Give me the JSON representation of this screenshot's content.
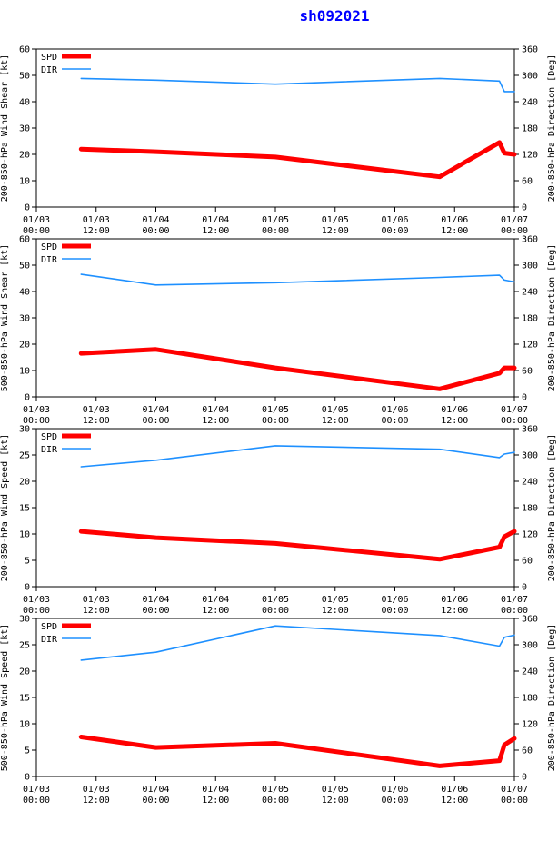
{
  "title": "sh092021",
  "colors": {
    "spd": "#ff0000",
    "dir": "#1e90ff",
    "title": "#0000ff"
  },
  "legend": {
    "spd": "SPD",
    "dir": "DIR"
  },
  "x_ticks": [
    {
      "date": "01/03",
      "time": "00:00",
      "hour": 0
    },
    {
      "date": "01/03",
      "time": "12:00",
      "hour": 12
    },
    {
      "date": "01/04",
      "time": "00:00",
      "hour": 24
    },
    {
      "date": "01/04",
      "time": "12:00",
      "hour": 36
    },
    {
      "date": "01/05",
      "time": "00:00",
      "hour": 48
    },
    {
      "date": "01/05",
      "time": "12:00",
      "hour": 60
    },
    {
      "date": "01/06",
      "time": "00:00",
      "hour": 72
    },
    {
      "date": "01/06",
      "time": "12:00",
      "hour": 84
    },
    {
      "date": "01/07",
      "time": "00:00",
      "hour": 96
    }
  ],
  "chart_data": [
    {
      "type": "line",
      "ylabel": "200-850-hPa Wind Shear [kt]",
      "y2label": "200-850-hPa Direction [Deg]",
      "ylim": [
        0,
        60
      ],
      "yticks": [
        0,
        10,
        20,
        30,
        40,
        50,
        60
      ],
      "y2lim": [
        0,
        360
      ],
      "y2ticks": [
        0,
        60,
        120,
        180,
        240,
        300,
        360
      ],
      "series": [
        {
          "name": "SPD",
          "axis": "left",
          "x": [
            "01/03 09:00",
            "01/04 00:00",
            "01/05 00:00",
            "01/06 09:00",
            "01/06 21:00",
            "01/06 22:00",
            "01/07 00:00"
          ],
          "values": [
            22,
            21,
            19,
            11.5,
            24.5,
            20.5,
            20
          ]
        },
        {
          "name": "DIR",
          "axis": "right",
          "x": [
            "01/03 09:00",
            "01/04 00:00",
            "01/05 00:00",
            "01/06 09:00",
            "01/06 21:00",
            "01/06 22:00",
            "01/07 00:00"
          ],
          "values": [
            293,
            289,
            280,
            293,
            287,
            263,
            263
          ]
        }
      ]
    },
    {
      "type": "line",
      "ylabel": "500-850-hPa Wind Shear [kt]",
      "y2label": "200-850-hPa Direction [Deg]",
      "ylim": [
        0,
        60
      ],
      "yticks": [
        0,
        10,
        20,
        30,
        40,
        50,
        60
      ],
      "y2lim": [
        0,
        360
      ],
      "y2ticks": [
        0,
        60,
        120,
        180,
        240,
        300,
        360
      ],
      "series": [
        {
          "name": "SPD",
          "axis": "left",
          "x": [
            "01/03 09:00",
            "01/04 00:00",
            "01/05 00:00",
            "01/06 09:00",
            "01/06 21:00",
            "01/06 22:00",
            "01/07 00:00"
          ],
          "values": [
            16.5,
            18,
            11,
            3,
            9,
            11,
            11
          ]
        },
        {
          "name": "DIR",
          "axis": "right",
          "x": [
            "01/03 09:00",
            "01/04 00:00",
            "01/05 00:00",
            "01/06 09:00",
            "01/06 21:00",
            "01/06 22:00",
            "01/07 00:00"
          ],
          "values": [
            279,
            255,
            260,
            272,
            277,
            266,
            262
          ]
        }
      ]
    },
    {
      "type": "line",
      "ylabel": "200-850-hPa Wind Speed [kt]",
      "y2label": "200-850-hPa Direction [Deg]",
      "ylim": [
        0,
        30
      ],
      "yticks": [
        0,
        5,
        10,
        15,
        20,
        25,
        30
      ],
      "y2lim": [
        0,
        360
      ],
      "y2ticks": [
        0,
        60,
        120,
        180,
        240,
        300,
        360
      ],
      "series": [
        {
          "name": "SPD",
          "axis": "left",
          "x": [
            "01/03 09:00",
            "01/04 00:00",
            "01/05 00:00",
            "01/06 09:00",
            "01/06 21:00",
            "01/06 22:00",
            "01/07 00:00"
          ],
          "values": [
            10.5,
            9.3,
            8.2,
            5.2,
            7.5,
            9.5,
            10.5
          ]
        },
        {
          "name": "DIR",
          "axis": "right",
          "x": [
            "01/03 09:00",
            "01/04 00:00",
            "01/05 00:00",
            "01/06 09:00",
            "01/06 21:00",
            "01/06 22:00",
            "01/07 00:00"
          ],
          "values": [
            273,
            288,
            321,
            313,
            294,
            302,
            306
          ]
        }
      ]
    },
    {
      "type": "line",
      "ylabel": "500-850-hPa Wind Speed [kt]",
      "y2label": "200-850-hPa Direction [Deg]",
      "ylim": [
        0,
        30
      ],
      "yticks": [
        0,
        5,
        10,
        15,
        20,
        25,
        30
      ],
      "y2lim": [
        0,
        360
      ],
      "y2ticks": [
        0,
        60,
        120,
        180,
        240,
        300,
        360
      ],
      "series": [
        {
          "name": "SPD",
          "axis": "left",
          "x": [
            "01/03 09:00",
            "01/04 00:00",
            "01/05 00:00",
            "01/06 09:00",
            "01/06 21:00",
            "01/06 22:00",
            "01/07 00:00"
          ],
          "values": [
            7.5,
            5.5,
            6.3,
            2,
            3,
            6,
            7.2
          ]
        },
        {
          "name": "DIR",
          "axis": "right",
          "x": [
            "01/03 09:00",
            "01/04 00:00",
            "01/05 00:00",
            "01/06 09:00",
            "01/06 21:00",
            "01/06 22:00",
            "01/07 00:00"
          ],
          "values": [
            265,
            283,
            343,
            321,
            297,
            317,
            322
          ]
        }
      ]
    }
  ]
}
